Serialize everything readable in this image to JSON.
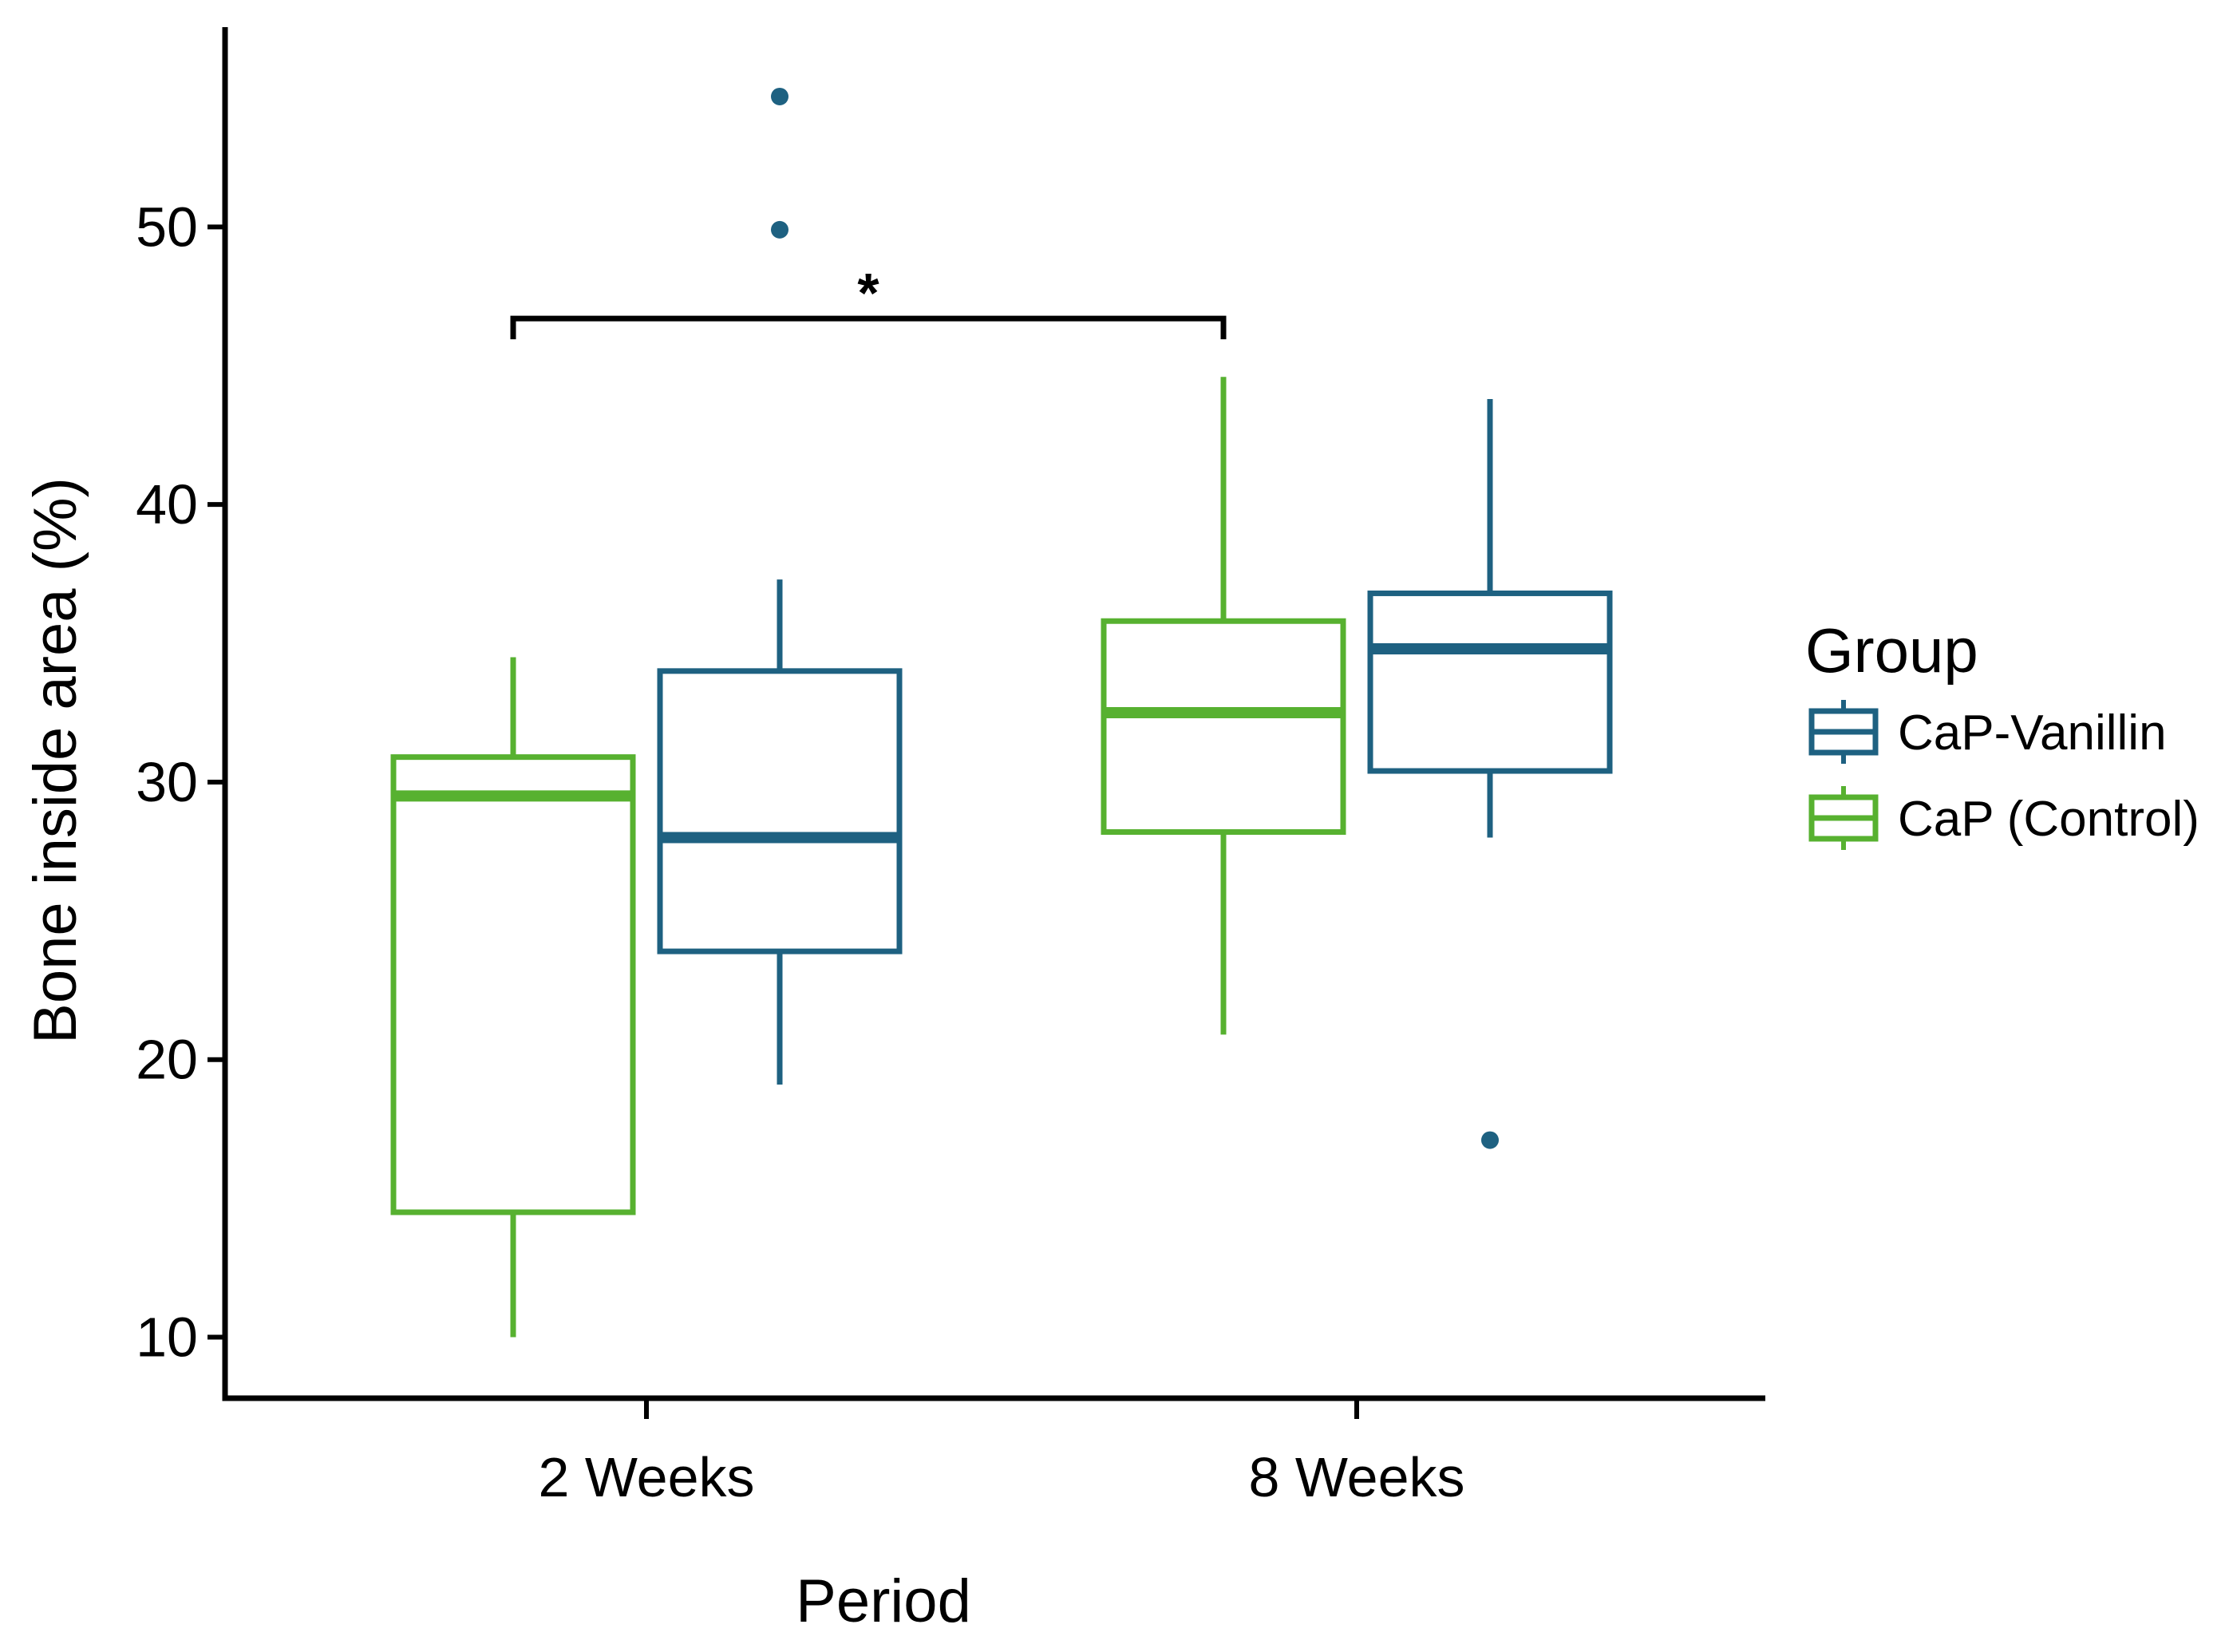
{
  "chart_data": {
    "type": "boxplot",
    "xlabel": "Period",
    "ylabel": "Bone inside area (%)",
    "ylim": [
      7.8,
      57.2
    ],
    "yticks": [
      10,
      20,
      30,
      40,
      50
    ],
    "categories": [
      "2 Weeks",
      "8 Weeks"
    ],
    "legend": {
      "title": "Group",
      "position": "right"
    },
    "series": [
      {
        "name": "CaP (Control)",
        "color": "#57b130",
        "boxes": [
          {
            "category": "2 Weeks",
            "whisker_low": 10.0,
            "q1": 14.5,
            "median": 29.5,
            "q3": 30.9,
            "whisker_high": 34.5,
            "outliers": []
          },
          {
            "category": "8 Weeks",
            "whisker_low": 20.9,
            "q1": 28.2,
            "median": 32.5,
            "q3": 35.8,
            "whisker_high": 44.6,
            "outliers": []
          }
        ]
      },
      {
        "name": "CaP-Vanillin",
        "color": "#1e6181",
        "boxes": [
          {
            "category": "2 Weeks",
            "whisker_low": 19.1,
            "q1": 23.9,
            "median": 28.0,
            "q3": 34.0,
            "whisker_high": 37.3,
            "outliers": [
              49.9,
              54.7
            ]
          },
          {
            "category": "8 Weeks",
            "whisker_low": 28.0,
            "q1": 30.4,
            "median": 34.8,
            "q3": 36.8,
            "whisker_high": 43.8,
            "outliers": [
              17.1
            ]
          }
        ]
      }
    ],
    "annotations": [
      {
        "type": "significance-bracket",
        "text": "*",
        "from": "2 Weeks / CaP (Control)",
        "to": "8 Weeks / CaP (Control)",
        "y": 46.7
      }
    ]
  }
}
